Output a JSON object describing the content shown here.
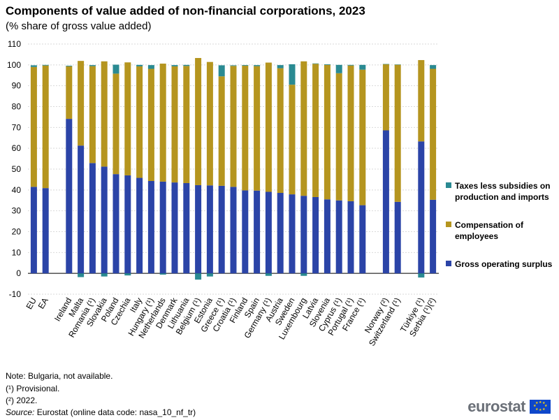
{
  "header": {
    "title": "Components of value added of non-financial corporations, 2023",
    "subtitle": "(% share of gross value added)"
  },
  "notes": {
    "line1": "Note: Bulgaria, not available.",
    "line2": "(¹) Provisional.",
    "line3": "(²) 2022.",
    "source_label": "Source:",
    "source_text": " Eurostat (online data code: nasa_10_nf_tr)"
  },
  "logo": {
    "text": "eurostat"
  },
  "colors": {
    "gross": "#2b44a7",
    "comp": "#b5951f",
    "taxes": "#2a8a92",
    "grid": "#d9d9d9",
    "axis": "#000000"
  },
  "chart_data": {
    "type": "bar",
    "stacked": true,
    "ylim": [
      -10,
      110
    ],
    "yticks": [
      -10,
      0,
      10,
      20,
      30,
      40,
      50,
      60,
      70,
      80,
      90,
      100,
      110
    ],
    "grid": true,
    "legend_position": "right",
    "categories": [
      "EU",
      "EA",
      "",
      "Ireland",
      "Malta",
      "Romania (¹)",
      "Slovakia",
      "Poland",
      "Czechia",
      "Italy",
      "Hungary (¹)",
      "Netherlands",
      "Denmark",
      "Lithuania",
      "Belgium (¹)",
      "Estonia",
      "Greece (¹)",
      "Croatia (¹)",
      "Finland",
      "Spain",
      "Germany (¹)",
      "Austria",
      "Sweden",
      "Luxembourg",
      "Latvia",
      "Slovenia",
      "Cyprus (¹)",
      "Portugal (¹)",
      "France (¹)",
      "",
      "Norway (²)",
      "Switzerland (¹)",
      "",
      "Türkiye (¹)",
      "Serbia (¹)(²)"
    ],
    "series": [
      {
        "name": "Taxes less subsidies on production and imports",
        "values": [
          0.8,
          0.3,
          null,
          0.3,
          -1.8,
          0.5,
          -1.5,
          4.3,
          -1.0,
          0.7,
          1.8,
          -0.6,
          0.6,
          0.5,
          -3.0,
          -1.5,
          5.3,
          0.3,
          0.3,
          0.5,
          -1.2,
          1.5,
          9.8,
          -1.2,
          0.2,
          0.3,
          4.0,
          0.3,
          2.3,
          null,
          0.0,
          0.1,
          null,
          -2.0,
          1.8
        ]
      },
      {
        "name": "Compensation of employees",
        "values": [
          57.5,
          58.8,
          null,
          25.2,
          40.6,
          46.5,
          50.5,
          48.2,
          54.2,
          53.5,
          53.8,
          56.6,
          55.7,
          56.2,
          61.0,
          59.2,
          52.5,
          58.0,
          59.8,
          59.7,
          62.0,
          59.8,
          52.6,
          64.5,
          63.9,
          64.5,
          61.0,
          65.1,
          65.0,
          null,
          31.8,
          65.8,
          null,
          39.0,
          62.8
        ]
      },
      {
        "name": "Gross operating surplus",
        "values": [
          41.5,
          40.9,
          null,
          74.1,
          61.3,
          52.9,
          51.2,
          47.6,
          47.0,
          45.8,
          44.3,
          44.0,
          43.6,
          43.3,
          42.3,
          42.2,
          42.0,
          41.5,
          39.8,
          39.7,
          39.1,
          38.6,
          37.9,
          37.2,
          36.6,
          35.5,
          35.0,
          34.6,
          32.7,
          null,
          68.6,
          34.3,
          null,
          63.3,
          35.3
        ]
      }
    ]
  }
}
